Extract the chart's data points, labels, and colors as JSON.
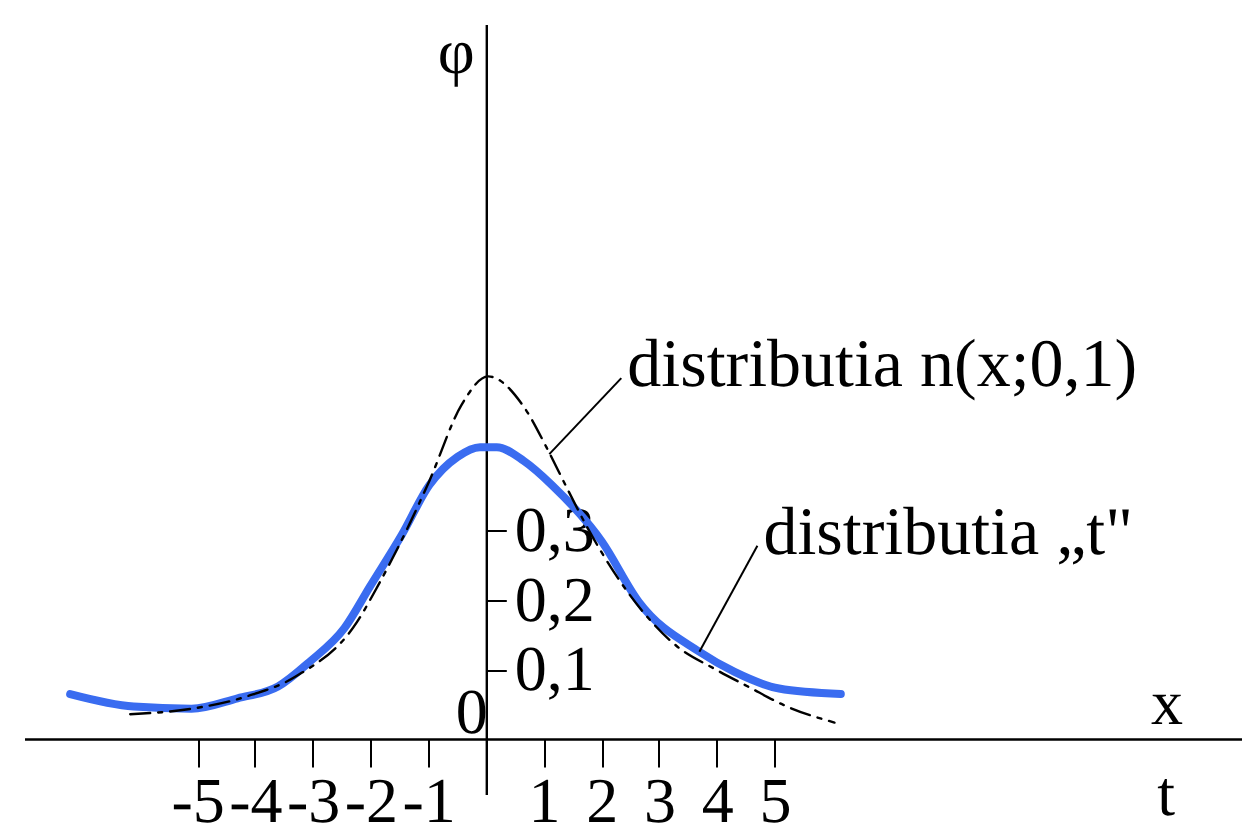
{
  "chart_data": {
    "type": "line",
    "xlabel": "x",
    "ylabel": "φ",
    "xlim": [
      -8,
      13.1
    ],
    "ylim": [
      -0.08,
      1.03
    ],
    "xticks": [
      -5,
      -4,
      -3,
      -2,
      -1,
      1,
      2,
      3,
      4,
      5
    ],
    "yticks": [
      {
        "value": 0.1,
        "label": "0,1"
      },
      {
        "value": 0.2,
        "label": "0,2"
      },
      {
        "value": 0.3,
        "label": "0,3"
      }
    ],
    "series": [
      {
        "color": "#3a6cf0",
        "line_style": "solid",
        "x": [
          -7.2,
          -6.1,
          -5.1,
          -4.3,
          -3.6,
          -3.06,
          -2.45,
          -2.0,
          -1.46,
          -0.98,
          -0.49,
          -0.1,
          0.19,
          0.66,
          1.15,
          2.01,
          2.65,
          3.7,
          4.31,
          5.08,
          6.15
        ],
        "values": [
          0.064,
          0.046,
          0.043,
          0.058,
          0.075,
          0.11,
          0.159,
          0.22,
          0.293,
          0.365,
          0.406,
          0.42,
          0.42,
          0.4,
          0.365,
          0.284,
          0.197,
          0.125,
          0.096,
          0.072,
          0.064
        ]
      },
      {
        "color": "#000000",
        "line_style": "dashed",
        "x": [
          -6.16,
          -5.09,
          -4.13,
          -3.28,
          -2.23,
          -1.89,
          -1.3,
          -0.98,
          -0.42,
          0.04,
          0.66,
          1.05,
          1.4,
          1.76,
          2.72,
          3.31,
          3.95,
          4.54,
          5.22,
          6.04
        ],
        "values": [
          0.035,
          0.043,
          0.061,
          0.09,
          0.168,
          0.217,
          0.313,
          0.371,
          0.481,
          0.522,
          0.478,
          0.42,
          0.362,
          0.304,
          0.183,
          0.133,
          0.101,
          0.075,
          0.046,
          0.023
        ]
      }
    ],
    "annotations": [
      "0",
      {
        "text": "distributia n(x;0,1)",
        "x": 1.1,
        "y": 0.41
      },
      {
        "text": "distributia „t\"",
        "x": 3.7,
        "y": 0.125
      },
      "t"
    ]
  }
}
